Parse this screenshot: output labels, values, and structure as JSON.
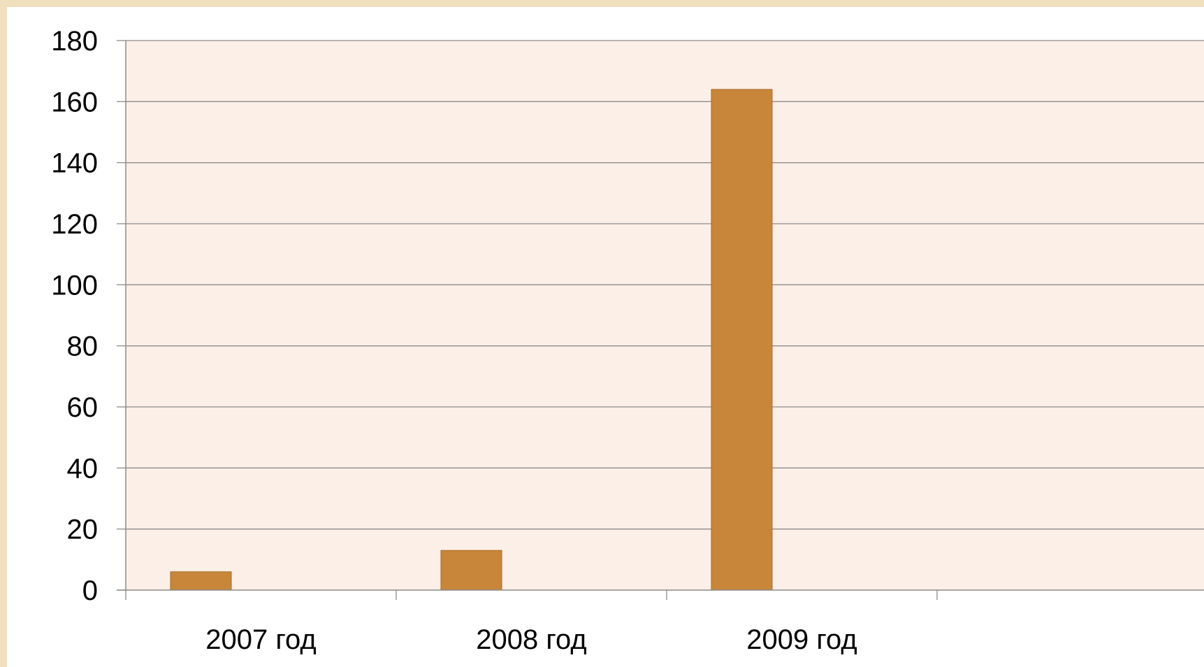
{
  "chart_data": {
    "type": "bar",
    "categories": [
      "2007 год",
      "2008 год",
      "2009 год",
      ""
    ],
    "values": [
      6,
      13,
      164,
      null
    ],
    "ylim": [
      0,
      180
    ],
    "yticks": [
      0,
      20,
      40,
      60,
      80,
      100,
      120,
      140,
      160,
      180
    ],
    "grid": true,
    "legend": "none"
  },
  "colors": {
    "background": "#f0e0bd",
    "plot_area": "#fcefe7",
    "bar": "#c8863a",
    "bar_edge": "#a86a25",
    "gridline": "#8c8c8c"
  }
}
